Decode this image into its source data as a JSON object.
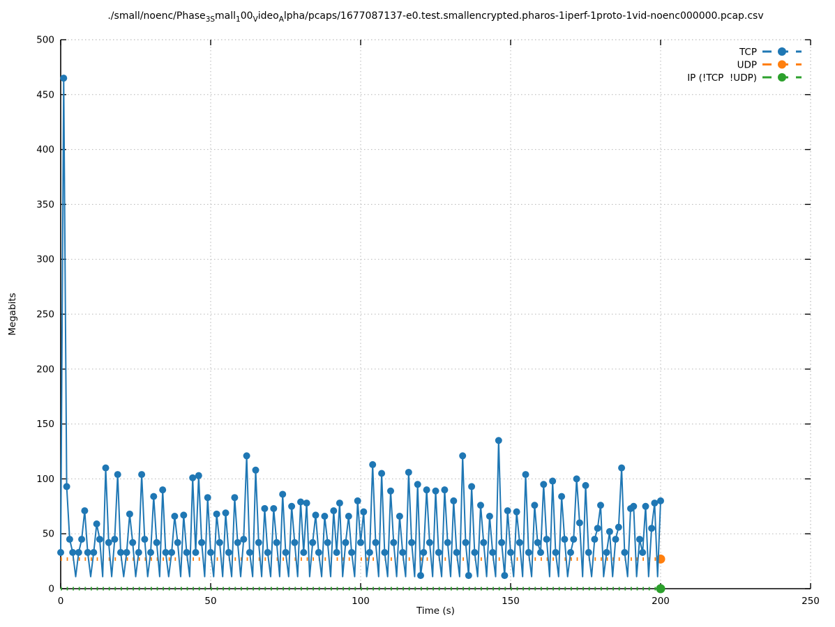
{
  "chart_data": {
    "type": "line",
    "title_plain": "./small/noenc/Phase_3_Small_100_Video_Alpha/pcaps/1677087137-e0.test.smallencrypted.pharos-1iperf-1proto-1vid-noenc000000.pcap.csv",
    "title_segments": [
      {
        "text": "./small/noenc/Phase",
        "style": "normal"
      },
      {
        "text": "3S",
        "style": "sub"
      },
      {
        "text": "mall",
        "style": "normal"
      },
      {
        "text": "1",
        "style": "sub"
      },
      {
        "text": "00",
        "style": "normal"
      },
      {
        "text": "V",
        "style": "sub"
      },
      {
        "text": "ideo",
        "style": "normal"
      },
      {
        "text": "A",
        "style": "sub"
      },
      {
        "text": "lpha/pcaps/1677087137-e0.test.smallencrypted.pharos-1iperf-1proto-1vid-noenc000000.pcap.csv",
        "style": "normal"
      }
    ],
    "xlabel": "Time (s)",
    "ylabel": "Megabits",
    "xlim": [
      0,
      250
    ],
    "ylim": [
      0,
      500
    ],
    "xticks": [
      0,
      50,
      100,
      150,
      200,
      250
    ],
    "yticks": [
      0,
      50,
      100,
      150,
      200,
      250,
      300,
      350,
      400,
      450,
      500
    ],
    "grid": {
      "on": true,
      "style": "dotted",
      "color": "#b5b5b5"
    },
    "legend": {
      "position": "top-right-inside",
      "entries": [
        {
          "label": "TCP",
          "color": "#1f77b4"
        },
        {
          "label": "UDP",
          "color": "#ff7f0e"
        },
        {
          "label": "IP (!TCP  !UDP)",
          "color": "#2ca02c"
        }
      ]
    },
    "series": [
      {
        "name": "TCP",
        "color": "#1f77b4",
        "style": "solid-line-with-circle-markers",
        "x_start": 0,
        "x_step": 1,
        "values": [
          33,
          465,
          93,
          45,
          33,
          11,
          33,
          45,
          71,
          33,
          11,
          33,
          59,
          45,
          11,
          110,
          42,
          11,
          45,
          104,
          33,
          11,
          33,
          68,
          42,
          11,
          33,
          104,
          45,
          11,
          33,
          84,
          42,
          11,
          90,
          33,
          11,
          33,
          66,
          42,
          11,
          67,
          33,
          11,
          101,
          33,
          103,
          42,
          11,
          83,
          33,
          11,
          68,
          42,
          11,
          69,
          33,
          11,
          83,
          42,
          11,
          45,
          121,
          33,
          11,
          108,
          42,
          11,
          73,
          33,
          11,
          73,
          42,
          11,
          86,
          33,
          11,
          75,
          42,
          11,
          79,
          33,
          78,
          11,
          42,
          67,
          33,
          11,
          66,
          42,
          11,
          71,
          33,
          78,
          11,
          42,
          66,
          33,
          11,
          80,
          42,
          70,
          11,
          33,
          113,
          42,
          11,
          105,
          33,
          11,
          89,
          42,
          11,
          66,
          33,
          11,
          106,
          42,
          11,
          95,
          12,
          33,
          90,
          42,
          11,
          89,
          33,
          11,
          90,
          42,
          11,
          80,
          33,
          11,
          121,
          42,
          12,
          93,
          33,
          11,
          76,
          42,
          11,
          66,
          33,
          11,
          135,
          42,
          12,
          71,
          33,
          11,
          70,
          42,
          11,
          104,
          33,
          11,
          76,
          42,
          33,
          95,
          45,
          11,
          98,
          33,
          11,
          84,
          45,
          11,
          33,
          45,
          100,
          60,
          11,
          94,
          33,
          11,
          45,
          55,
          76,
          11,
          33,
          52,
          11,
          45,
          56,
          110,
          33,
          11,
          73,
          75,
          11,
          45,
          33,
          75,
          11,
          55,
          78,
          11,
          80
        ],
        "dip_marker_x": [
          120,
          136,
          148
        ],
        "max_value": 465,
        "max_value_x": 1
      },
      {
        "name": "UDP",
        "color": "#ff7f0e",
        "style": "short-dashed-line",
        "constant_value": 27,
        "x_range": [
          0,
          200
        ],
        "end_marker": [
          200,
          27
        ]
      },
      {
        "name": "IP (!TCP  !UDP)",
        "color": "#2ca02c",
        "style": "short-dashed-line",
        "constant_value": 0,
        "x_range": [
          0,
          200
        ],
        "end_marker": [
          200,
          0
        ]
      }
    ]
  }
}
